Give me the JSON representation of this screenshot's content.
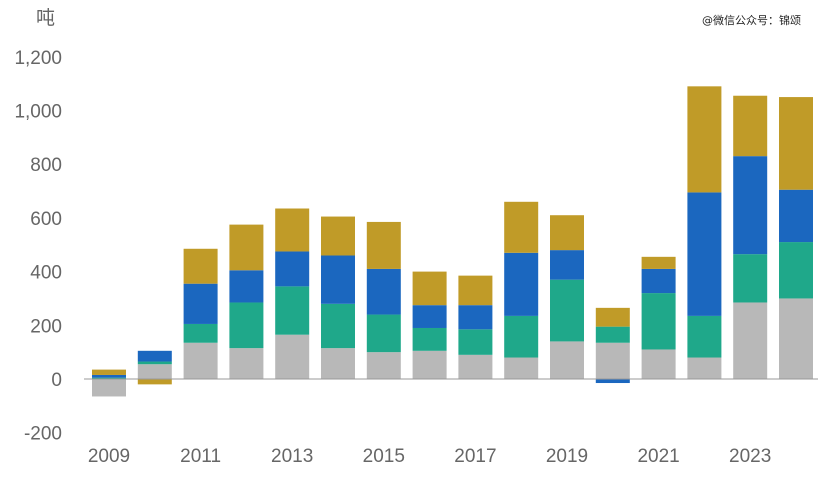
{
  "chart_data": {
    "type": "bar",
    "stacked": true,
    "title": "",
    "xlabel": "",
    "ylabel": "吨",
    "ylim": [
      -200,
      1200
    ],
    "yticks": [
      -200,
      0,
      200,
      400,
      600,
      800,
      1000,
      1200
    ],
    "ytick_labels": [
      "-200",
      "0",
      "200",
      "400",
      "600",
      "800",
      "1,000",
      "1,200"
    ],
    "grid": false,
    "legend": "none",
    "categories": [
      "2009",
      "2010",
      "2011",
      "2012",
      "2013",
      "2014",
      "2015",
      "2016",
      "2017",
      "2018",
      "2019",
      "2020",
      "2021",
      "2022",
      "2023",
      "2024"
    ],
    "x_tick_labels": [
      "2009",
      "",
      "2011",
      "",
      "2013",
      "",
      "2015",
      "",
      "2017",
      "",
      "2019",
      "",
      "2021",
      "",
      "2023",
      ""
    ],
    "series": [
      {
        "color": "#b8b8b8",
        "values": [
          -65,
          55,
          135,
          115,
          165,
          115,
          100,
          105,
          90,
          80,
          140,
          135,
          110,
          80,
          285,
          300
        ]
      },
      {
        "color": "#1fa88a",
        "values": [
          5,
          10,
          70,
          170,
          180,
          165,
          140,
          85,
          95,
          155,
          230,
          60,
          210,
          155,
          180,
          210
        ]
      },
      {
        "color": "#1b67bf",
        "values": [
          10,
          40,
          150,
          120,
          130,
          180,
          170,
          85,
          90,
          235,
          110,
          -15,
          90,
          460,
          365,
          195
        ]
      },
      {
        "color": "#c09b28",
        "values": [
          20,
          -20,
          130,
          170,
          160,
          145,
          175,
          125,
          110,
          190,
          130,
          70,
          45,
          395,
          225,
          345
        ]
      }
    ]
  },
  "watermark": "@微信公众号：锦颂"
}
